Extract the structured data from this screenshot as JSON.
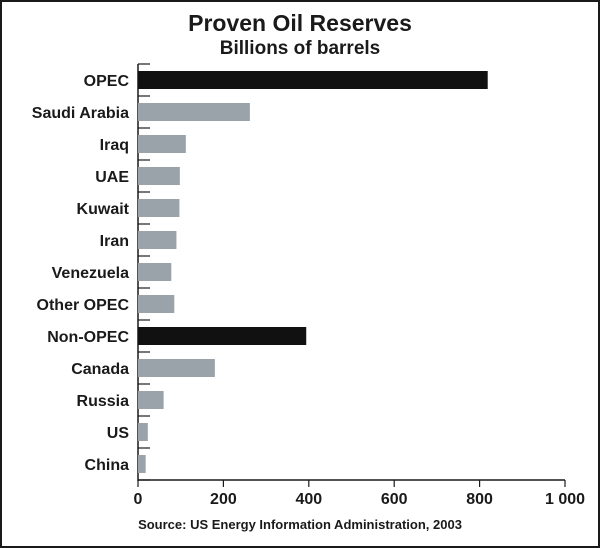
{
  "chart_data": {
    "type": "bar",
    "orientation": "horizontal",
    "title": "Proven Oil Reserves",
    "subtitle": "Billions of barrels",
    "categories": [
      "OPEC",
      "Saudi Arabia",
      "Iraq",
      "UAE",
      "Kuwait",
      "Iran",
      "Venezuela",
      "Other OPEC",
      "Non-OPEC",
      "Canada",
      "Russia",
      "US",
      "China"
    ],
    "values": [
      819,
      262,
      112,
      98,
      97,
      90,
      78,
      85,
      394,
      180,
      60,
      23,
      18
    ],
    "highlight": [
      true,
      false,
      false,
      false,
      false,
      false,
      false,
      false,
      true,
      false,
      false,
      false,
      false
    ],
    "xlim": [
      0,
      1000
    ],
    "xticks": [
      0,
      200,
      400,
      600,
      800,
      1000
    ],
    "xtick_labels": [
      "0",
      "200",
      "400",
      "600",
      "800",
      "1 000"
    ],
    "grid": false,
    "colors": {
      "highlight": "#111111",
      "normal": "#9aa3a9"
    },
    "source": "Source: US Energy Information Administration, 2003"
  }
}
